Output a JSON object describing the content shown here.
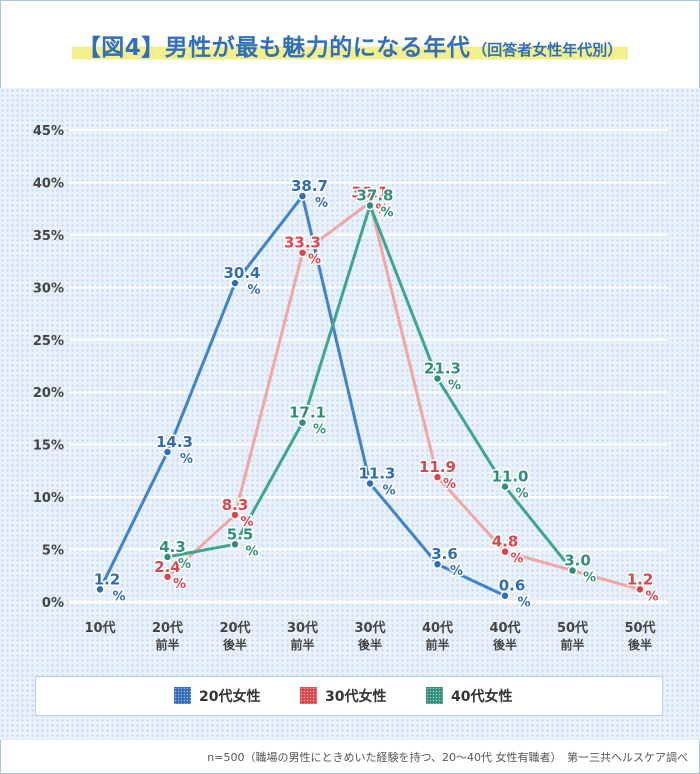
{
  "title": {
    "main": "【図4】男性が最も魅力的になる年代",
    "sub": "（回答者女性年代別）"
  },
  "footnote": "n=500（職場の男性にときめいた経験を持つ、20～40代 女性有職者）　第一三共ヘルスケア調べ",
  "colors": {
    "title": "#2f6fbd",
    "highlight": "#f3ef8a",
    "s20": "#3d83cf",
    "s30": "#f3a6a2",
    "s30_marker": "#e0434a",
    "s40": "#3da68e"
  },
  "chart_data": {
    "type": "line",
    "categories": [
      [
        "10代",
        ""
      ],
      [
        "20代",
        "前半"
      ],
      [
        "20代",
        "後半"
      ],
      [
        "30代",
        "前半"
      ],
      [
        "30代",
        "後半"
      ],
      [
        "40代",
        "前半"
      ],
      [
        "40代",
        "後半"
      ],
      [
        "50代",
        "前半"
      ],
      [
        "50代",
        "後半"
      ]
    ],
    "ylim": [
      0,
      45
    ],
    "yticks": [
      "0%",
      "5%",
      "10%",
      "15%",
      "20%",
      "25%",
      "30%",
      "35%",
      "40%",
      "45%"
    ],
    "grid": true,
    "legend_position": "bottom",
    "unit": "%",
    "series": [
      {
        "name": "20代女性",
        "color": "#3d83cf",
        "marker_color": "#2e6db5",
        "values": [
          1.2,
          14.3,
          30.4,
          38.7,
          11.3,
          3.6,
          0.6,
          null,
          null
        ]
      },
      {
        "name": "30代女性",
        "color": "#f3a6a2",
        "marker_color": "#e0434a",
        "values": [
          null,
          2.4,
          8.3,
          33.3,
          38.1,
          11.9,
          4.8,
          3.0,
          1.2
        ]
      },
      {
        "name": "40代女性",
        "color": "#3da68e",
        "marker_color": "#2f8f78",
        "values": [
          null,
          4.3,
          5.5,
          17.1,
          37.8,
          21.3,
          11.0,
          3.0,
          null
        ]
      }
    ],
    "value_labels": [
      {
        "series": 0,
        "values": [
          "1.2",
          "14.3",
          "30.4",
          "38.7",
          "11.3",
          "3.6",
          "0.6",
          null,
          null
        ]
      },
      {
        "series": 1,
        "values": [
          null,
          "2.4",
          "8.3",
          "33.3",
          "38.1",
          "11.9",
          "4.8",
          null,
          "1.2"
        ]
      },
      {
        "series": 2,
        "values": [
          null,
          "4.3",
          "5.5",
          "17.1",
          "37.8",
          "21.3",
          "11.0",
          "3.0",
          null
        ]
      }
    ]
  }
}
